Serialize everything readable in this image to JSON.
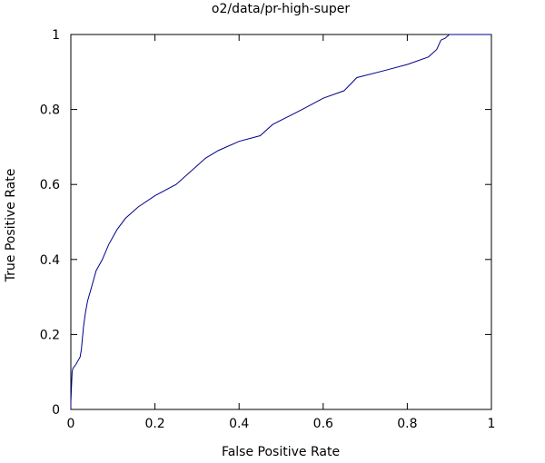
{
  "chart_data": {
    "type": "line",
    "title": "o2/data/pr-high-super",
    "xlabel": "False Positive Rate",
    "ylabel": "True Positive Rate",
    "xlim": [
      0,
      1
    ],
    "ylim": [
      0,
      1
    ],
    "xticks": [
      "0",
      "0.2",
      "0.4",
      "0.6",
      "0.8",
      "1"
    ],
    "yticks": [
      "0",
      "0.2",
      "0.4",
      "0.6",
      "0.8",
      "1"
    ],
    "grid": false,
    "legend": "none",
    "line_color": "#00008b",
    "series": [
      {
        "x": [
          0.0,
          0.0,
          0.003,
          0.005,
          0.012,
          0.022,
          0.025,
          0.03,
          0.035,
          0.04,
          0.05,
          0.06,
          0.075,
          0.09,
          0.11,
          0.13,
          0.16,
          0.2,
          0.25,
          0.3,
          0.32,
          0.35,
          0.4,
          0.45,
          0.48,
          0.55,
          0.6,
          0.65,
          0.68,
          0.75,
          0.8,
          0.85,
          0.87,
          0.88,
          0.89,
          0.9,
          1.0
        ],
        "y": [
          0.0,
          0.02,
          0.1,
          0.11,
          0.12,
          0.14,
          0.16,
          0.22,
          0.26,
          0.29,
          0.33,
          0.37,
          0.4,
          0.44,
          0.48,
          0.51,
          0.54,
          0.57,
          0.6,
          0.65,
          0.67,
          0.69,
          0.715,
          0.73,
          0.76,
          0.8,
          0.83,
          0.85,
          0.885,
          0.905,
          0.92,
          0.94,
          0.96,
          0.985,
          0.99,
          1.0,
          1.0
        ]
      }
    ]
  }
}
